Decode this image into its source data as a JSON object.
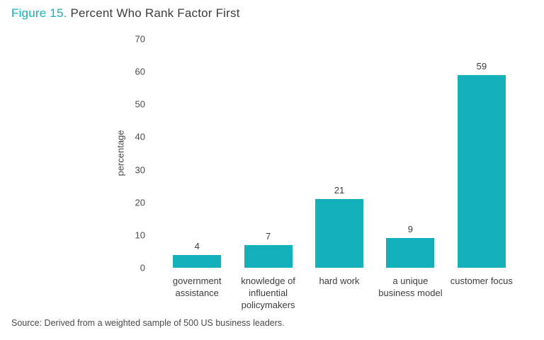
{
  "title": {
    "prefix": "Figure 15.",
    "text": " Percent Who Rank Factor First"
  },
  "source": "Source: Derived from a weighted sample of 500 US business leaders.",
  "colors": {
    "bar": "#14b1ba",
    "accent": "#14b1ba"
  },
  "chart_data": {
    "type": "bar",
    "title": "Figure 15. Percent Who Rank Factor First",
    "categories": [
      "government assistance",
      "knowledge of influential policymakers",
      "hard work",
      "a unique business model",
      "customer focus"
    ],
    "values": [
      4,
      7,
      21,
      9,
      59
    ],
    "xlabel": "",
    "ylabel": "percentage",
    "ylim": [
      0,
      70
    ],
    "yticks": [
      0,
      10,
      20,
      30,
      40,
      50,
      60,
      70
    ],
    "grid": false,
    "legend": false,
    "bar_color": "#14b1ba",
    "value_labels": true
  }
}
